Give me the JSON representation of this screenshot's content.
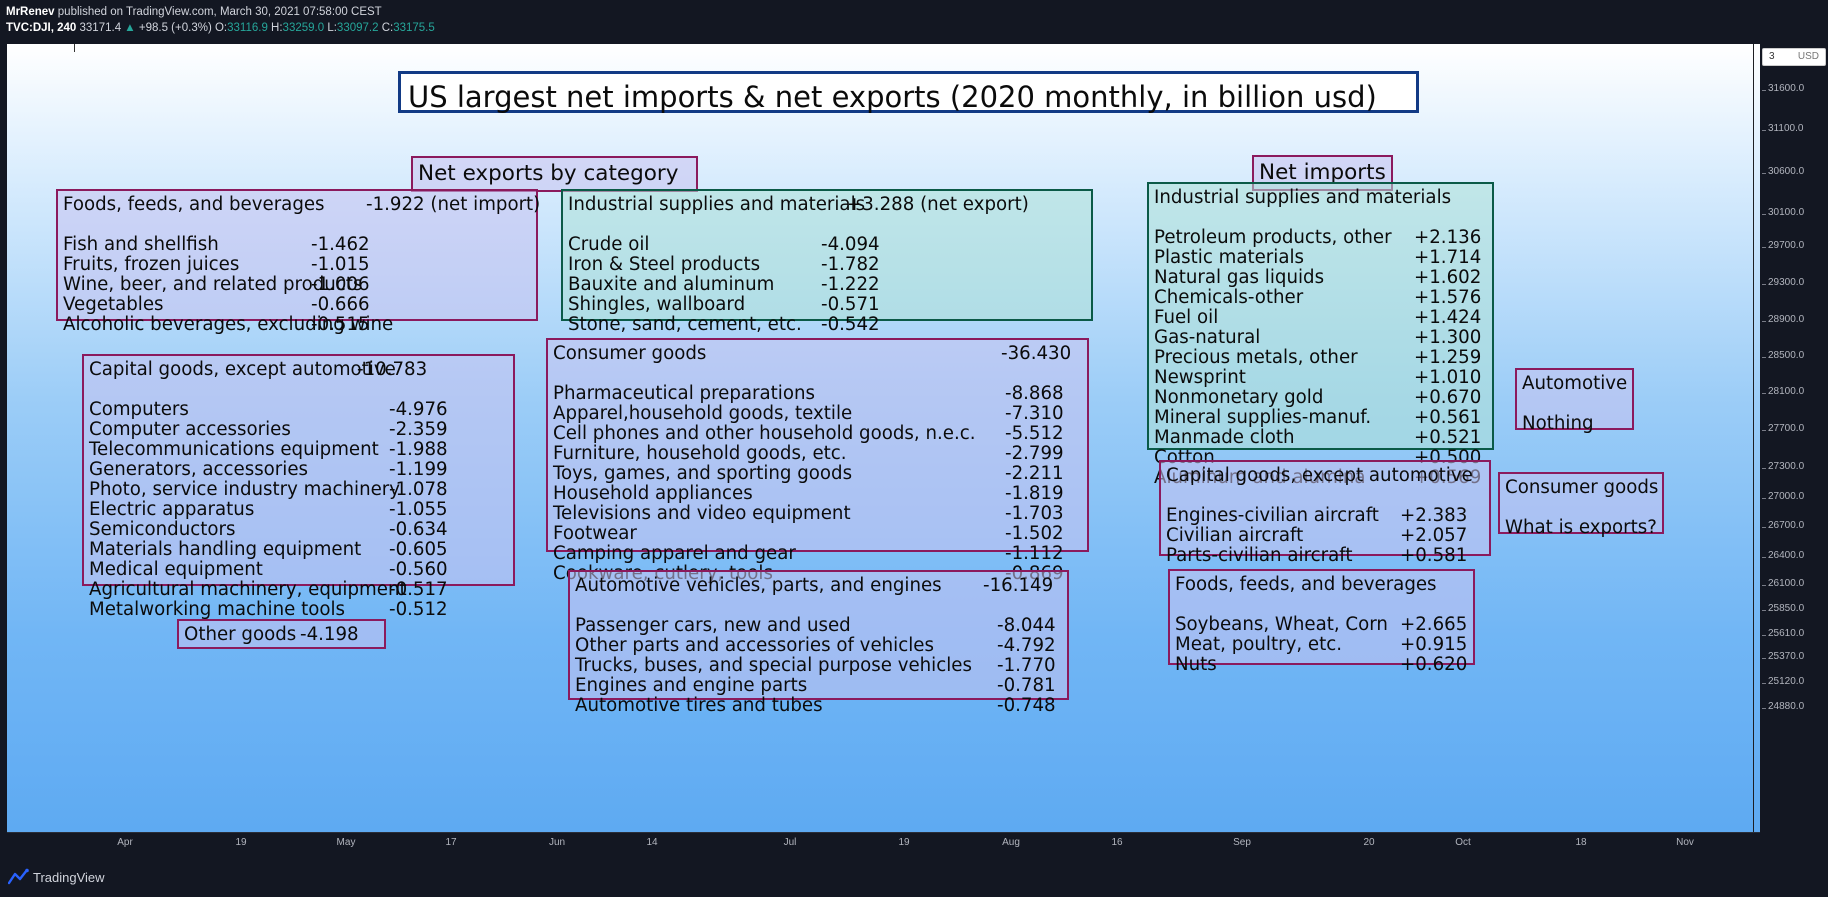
{
  "topbar": {
    "publisher": "MrRenev",
    "published_text": "published on TradingView.com, March 30, 2021 07:58:00 CEST",
    "symbol": "TVC:DJI, 240",
    "last": "33171.4",
    "arrow": "▲",
    "change": "+98.5 (+0.3%)",
    "o_label": "O:",
    "o_value": "33116.9",
    "h_label": "H:",
    "h_value": "33259.0",
    "l_label": "L:",
    "l_value": "33097.2",
    "c_label": "C:",
    "c_value": "33175.5"
  },
  "title": "US largest net imports & net exports (2020 monthly, in billion usd)",
  "exports_heading": "Net exports by category",
  "imports_heading": "Net imports",
  "foods_exports": {
    "header": "Foods, feeds, and beverages",
    "header_value": "-1.922 (net import)",
    "rows": [
      {
        "k": "Fish and shellfish",
        "v": "-1.462"
      },
      {
        "k": "Fruits, frozen juices",
        "v": "-1.015"
      },
      {
        "k": "Wine, beer, and related products",
        "v": "-1.006"
      },
      {
        "k": "Vegetables",
        "v": "-0.666"
      },
      {
        "k": "Alcoholic beverages, excluding wine",
        "v": "-0.515"
      }
    ]
  },
  "industrial_exports": {
    "header": "Industrial supplies and materials",
    "header_value": "+3.288 (net export)",
    "rows": [
      {
        "k": "Crude oil",
        "v": "-4.094"
      },
      {
        "k": "Iron & Steel products",
        "v": "-1.782"
      },
      {
        "k": "Bauxite and aluminum",
        "v": "-1.222"
      },
      {
        "k": "Shingles, wallboard",
        "v": "-0.571"
      },
      {
        "k": "Stone, sand, cement, etc.",
        "v": "-0.542"
      }
    ]
  },
  "capital_exports": {
    "header": "Capital goods, except automotive",
    "header_value": "-10.783",
    "rows": [
      {
        "k": "Computers",
        "v": "-4.976"
      },
      {
        "k": "Computer accessories",
        "v": "-2.359"
      },
      {
        "k": "Telecommunications equipment",
        "v": "-1.988"
      },
      {
        "k": "Generators, accessories",
        "v": "-1.199"
      },
      {
        "k": "Photo, service industry machinery",
        "v": "-1.078"
      },
      {
        "k": "Electric apparatus",
        "v": "-1.055"
      },
      {
        "k": "Semiconductors",
        "v": "-0.634"
      },
      {
        "k": "Materials handling equipment",
        "v": "-0.605"
      },
      {
        "k": "Medical equipment",
        "v": "-0.560"
      },
      {
        "k": "Agricultural machinery, equipment",
        "v": "-0.517"
      },
      {
        "k": "Metalworking machine tools",
        "v": "-0.512"
      }
    ]
  },
  "consumer_exports": {
    "header": "Consumer goods",
    "header_value": "-36.430",
    "rows": [
      {
        "k": "Pharmaceutical preparations",
        "v": "-8.868"
      },
      {
        "k": "Apparel,household goods, textile",
        "v": "-7.310"
      },
      {
        "k": "Cell phones and other household goods, n.e.c.",
        "v": "-5.512"
      },
      {
        "k": "Furniture, household goods, etc.",
        "v": "-2.799"
      },
      {
        "k": "Toys, games, and sporting goods",
        "v": "-2.211"
      },
      {
        "k": "Household appliances",
        "v": "-1.819"
      },
      {
        "k": "Televisions and video equipment",
        "v": "-1.703"
      },
      {
        "k": "Footwear",
        "v": "-1.502"
      },
      {
        "k": "Camping apparel and gear",
        "v": "-1.112"
      },
      {
        "k": "Cookware, cutlery, tools",
        "v": "-0.869"
      }
    ]
  },
  "other_goods": {
    "label": "Other goods",
    "value": "-4.198"
  },
  "automotive_exports": {
    "header": "Automotive vehicles, parts, and engines",
    "header_value": "-16.149",
    "rows": [
      {
        "k": "Passenger cars, new and used",
        "v": "-8.044"
      },
      {
        "k": "Other parts and accessories of vehicles",
        "v": "-4.792"
      },
      {
        "k": "Trucks, buses, and special purpose vehicles",
        "v": "-1.770"
      },
      {
        "k": "Engines and engine parts",
        "v": "-0.781"
      },
      {
        "k": "Automotive tires and tubes",
        "v": "-0.748"
      }
    ]
  },
  "industrial_imports": {
    "header": "Industrial supplies and materials",
    "rows": [
      {
        "k": "Petroleum products, other",
        "v": "+2.136"
      },
      {
        "k": "Plastic materials",
        "v": "+1.714"
      },
      {
        "k": "Natural gas liquids",
        "v": "+1.602"
      },
      {
        "k": "Chemicals-other",
        "v": "+1.576"
      },
      {
        "k": "Fuel oil",
        "v": "+1.424"
      },
      {
        "k": "Gas-natural",
        "v": "+1.300"
      },
      {
        "k": "Precious metals, other",
        "v": "+1.259"
      },
      {
        "k": "Newsprint",
        "v": "+1.010"
      },
      {
        "k": "Nonmonetary gold",
        "v": "+0.670"
      },
      {
        "k": "Mineral supplies-manuf.",
        "v": "+0.561"
      },
      {
        "k": "Manmade cloth",
        "v": "+0.521"
      },
      {
        "k": "Cotton",
        "v": "+0.500"
      },
      {
        "k": "Aluminum and alumina",
        "v": "+0.569"
      }
    ]
  },
  "capital_imports": {
    "header": "Capital goods, except automotive",
    "rows": [
      {
        "k": "Engines-civilian aircraft",
        "v": "+2.383"
      },
      {
        "k": "Civilian aircraft",
        "v": "+2.057"
      },
      {
        "k": "Parts-civilian aircraft",
        "v": "+0.581"
      }
    ]
  },
  "foods_imports": {
    "header": "Foods, feeds, and beverages",
    "rows": [
      {
        "k": "Soybeans, Wheat, Corn",
        "v": "+2.665"
      },
      {
        "k": "Meat, poultry, etc.",
        "v": "+0.915"
      },
      {
        "k": "Nuts",
        "v": "+0.620"
      }
    ]
  },
  "automotive_imports": {
    "header": "Automotive",
    "text": "Nothing"
  },
  "consumer_imports": {
    "header": "Consumer goods",
    "text": "What is exports?"
  },
  "y_axis": {
    "currency_label": "3",
    "currency": "USD",
    "ticks": [
      "31600.0",
      "31100.0",
      "30600.0",
      "30100.0",
      "29700.0",
      "29300.0",
      "28900.0",
      "28500.0",
      "28100.0",
      "27700.0",
      "27300.0",
      "27000.0",
      "26700.0",
      "26400.0",
      "26100.0",
      "25850.0",
      "25610.0",
      "25370.0",
      "25120.0",
      "24880.0"
    ]
  },
  "x_axis": {
    "ticks": [
      "Apr",
      "19",
      "May",
      "17",
      "Jun",
      "14",
      "Jul",
      "19",
      "Aug",
      "16",
      "Sep",
      "20",
      "Oct",
      "18",
      "Nov"
    ]
  },
  "footer": {
    "brand": "TradingView"
  },
  "colors": {
    "up": "#26a69a",
    "frame": "#8b1a5d",
    "frame_teal": "#0b5a47",
    "title_frame": "#123a85",
    "panel": "#131722"
  }
}
